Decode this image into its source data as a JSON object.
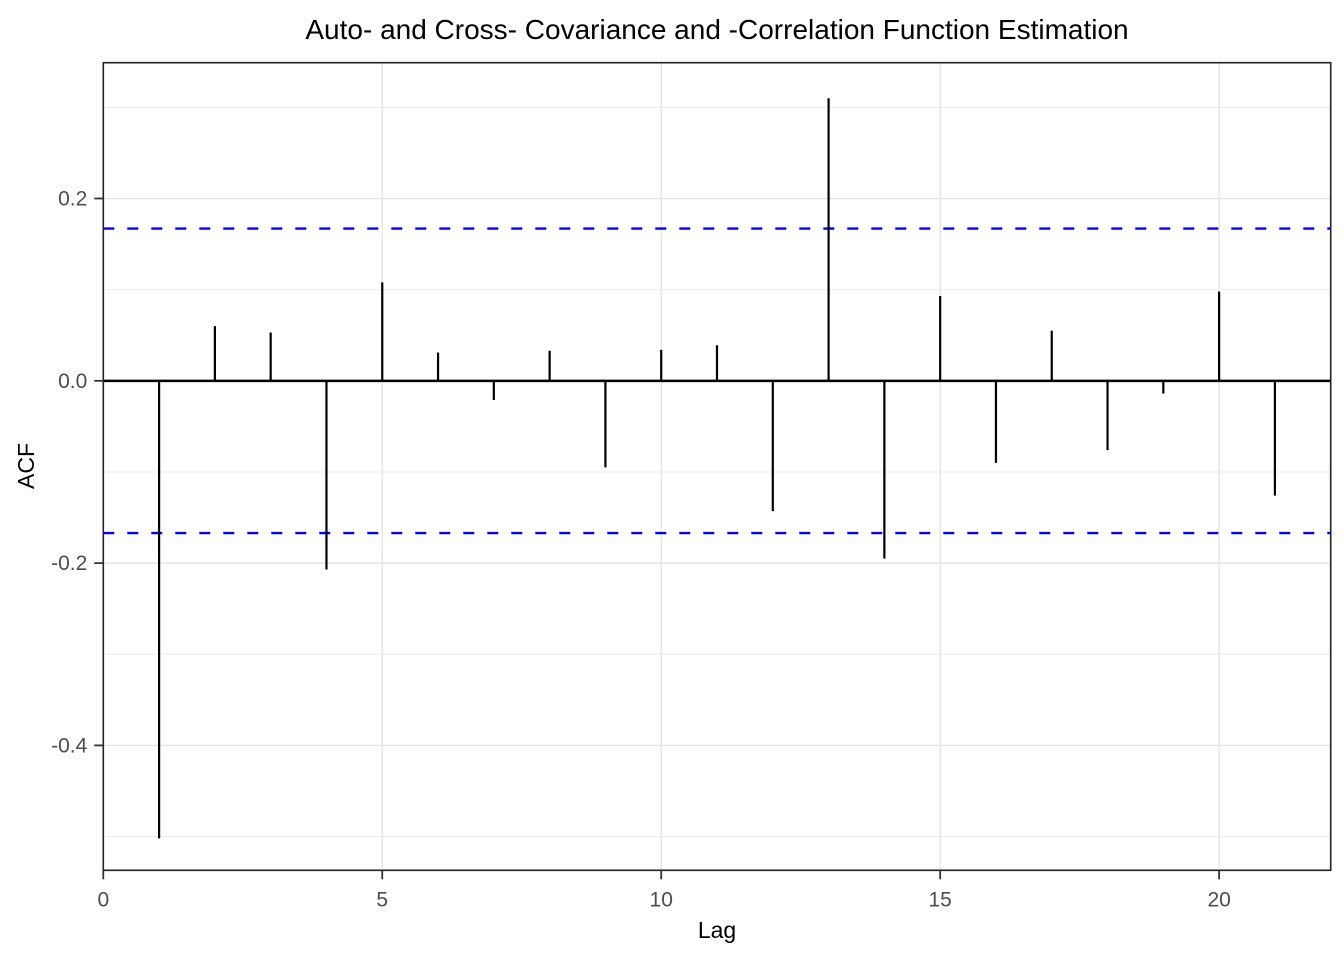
{
  "page": {
    "background_color": "#FFFFFF"
  },
  "chart_data": {
    "type": "bar",
    "subtype": "acf-stem-plot",
    "title": "Auto- and Cross- Covariance and -Correlation Function Estimation",
    "xlabel": "Lag",
    "ylabel": "ACF",
    "x": [
      1,
      2,
      3,
      4,
      5,
      6,
      7,
      8,
      9,
      10,
      11,
      12,
      13,
      14,
      15,
      16,
      17,
      18,
      19,
      20,
      21
    ],
    "series": [
      {
        "name": "ACF",
        "values": [
          -0.502,
          0.06,
          0.053,
          -0.207,
          0.108,
          0.031,
          -0.021,
          0.033,
          -0.095,
          0.034,
          0.039,
          -0.143,
          0.31,
          -0.195,
          0.093,
          -0.09,
          0.055,
          -0.076,
          -0.014,
          0.098,
          -0.126
        ]
      }
    ],
    "confidence_bounds": {
      "upper": 0.167,
      "lower": -0.167
    },
    "zero_line": 0.0,
    "xlim": [
      0,
      22
    ],
    "ylim": [
      -0.537,
      0.349
    ],
    "x_ticks": [
      {
        "value": 0,
        "label": "0"
      },
      {
        "value": 5,
        "label": "5"
      },
      {
        "value": 10,
        "label": "10"
      },
      {
        "value": 15,
        "label": "15"
      },
      {
        "value": 20,
        "label": "20"
      }
    ],
    "y_ticks": [
      {
        "value": 0.2,
        "label": "0.2"
      },
      {
        "value": 0.0,
        "label": "0.0"
      },
      {
        "value": -0.2,
        "label": "-0.2"
      },
      {
        "value": -0.4,
        "label": "-0.4"
      }
    ],
    "y_minor_gridlines": [
      0.3,
      0.1,
      -0.1,
      -0.3,
      -0.5
    ],
    "grid": true,
    "legend": "none",
    "colors": {
      "stem": "#000000",
      "zero_line": "#000000",
      "confidence_line": "#0000FF",
      "major_gridline": "#E5E5E5",
      "minor_gridline": "#EFEFEF",
      "panel_border": "#222222",
      "tick_mark": "#333333",
      "tick_text": "#4D4D4D",
      "title_text": "#000000",
      "panel_background": "#FFFFFF"
    }
  }
}
